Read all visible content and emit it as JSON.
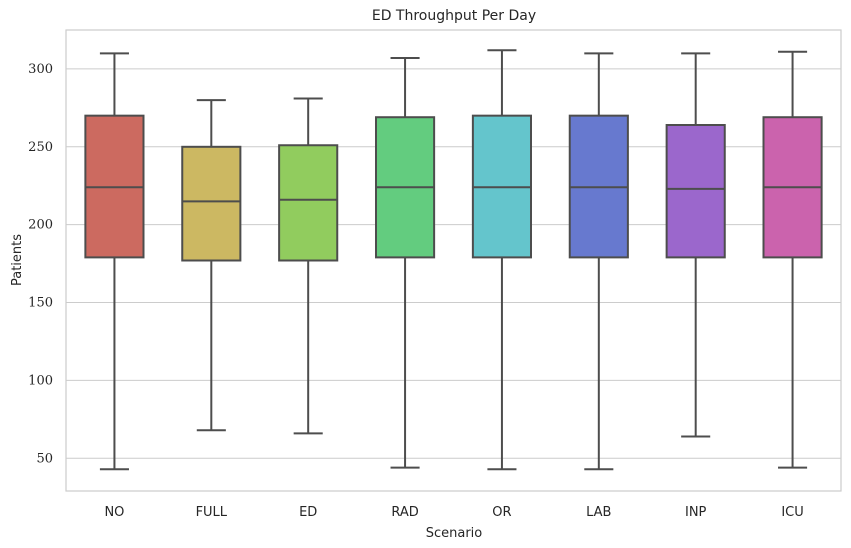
{
  "chart_data": {
    "type": "box",
    "title": "ED Throughput Per Day",
    "xlabel": "Scenario",
    "ylabel": "Patients",
    "ylim": [
      29,
      325
    ],
    "yticks": [
      50,
      100,
      150,
      200,
      250,
      300
    ],
    "grid": true,
    "categories": [
      "NO",
      "FULL",
      "ED",
      "RAD",
      "OR",
      "LAB",
      "INP",
      "ICU"
    ],
    "colors": [
      "#cc6a60",
      "#ccb862",
      "#91cc5e",
      "#63cc7f",
      "#64c5cc",
      "#6779cf",
      "#9b67cc",
      "#cb63ad"
    ],
    "line_color": "#4d4d4d",
    "boxes": [
      {
        "min": 43,
        "q1": 179,
        "median": 224,
        "q3": 270,
        "max": 310
      },
      {
        "min": 68,
        "q1": 177,
        "median": 215,
        "q3": 250,
        "max": 280
      },
      {
        "min": 66,
        "q1": 177,
        "median": 216,
        "q3": 251,
        "max": 281
      },
      {
        "min": 44,
        "q1": 179,
        "median": 224,
        "q3": 269,
        "max": 307
      },
      {
        "min": 43,
        "q1": 179,
        "median": 224,
        "q3": 270,
        "max": 312
      },
      {
        "min": 43,
        "q1": 179,
        "median": 224,
        "q3": 270,
        "max": 310
      },
      {
        "min": 64,
        "q1": 179,
        "median": 223,
        "q3": 264,
        "max": 310
      },
      {
        "min": 44,
        "q1": 179,
        "median": 224,
        "q3": 269,
        "max": 311
      }
    ]
  }
}
